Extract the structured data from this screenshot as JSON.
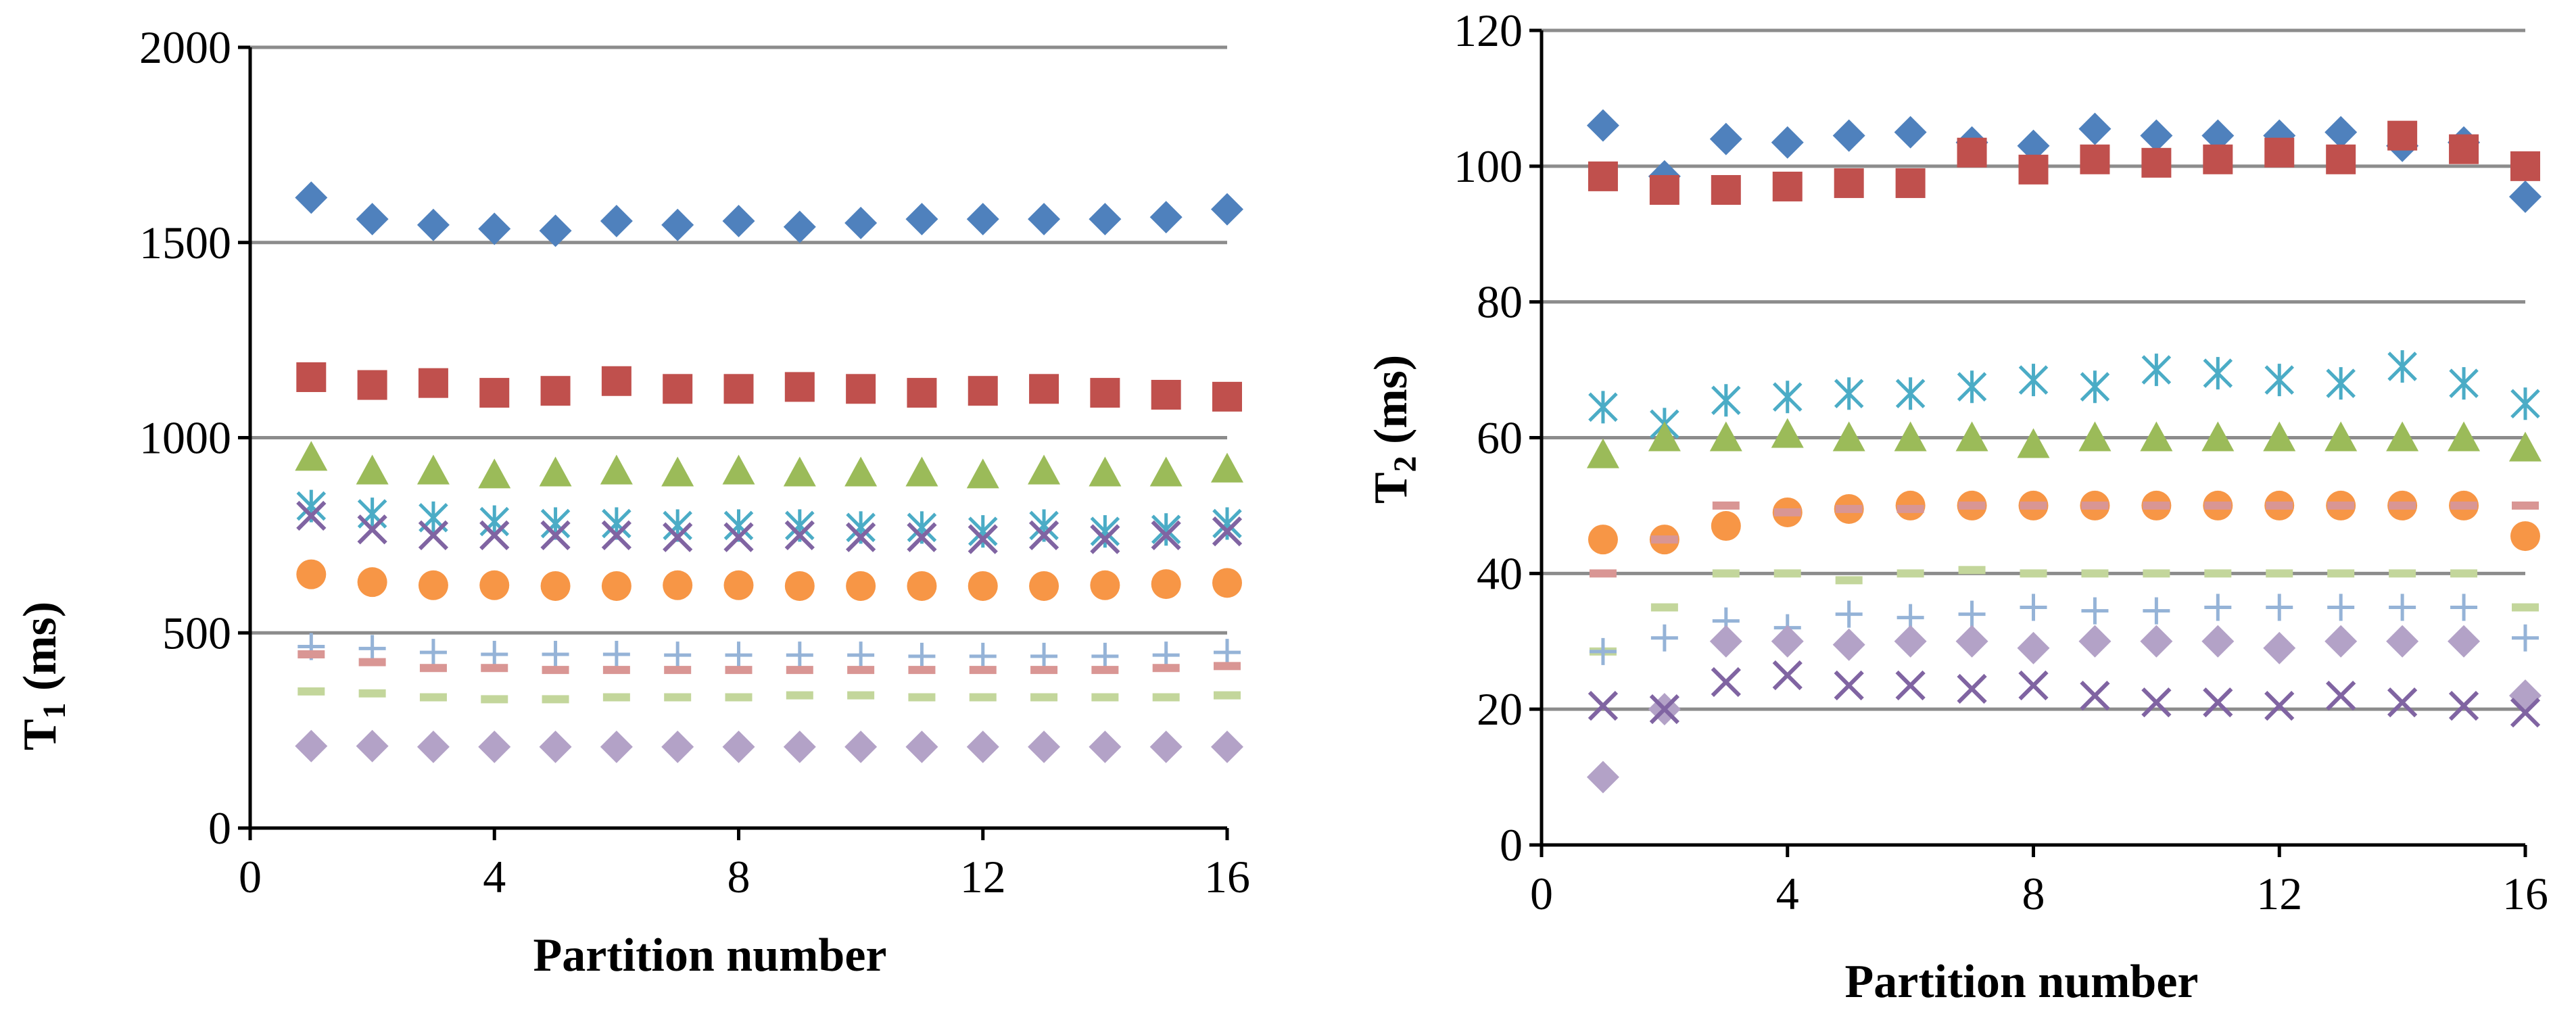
{
  "chart_data": [
    {
      "type": "scatter",
      "id": "t1",
      "ylabel": "T",
      "ylabel_sub": "1",
      "ylabel_unit": " (ms)",
      "xlabel": "Partition number",
      "xlim": [
        0,
        16
      ],
      "ylim": [
        0,
        2000
      ],
      "xticks": [
        0,
        4,
        8,
        12,
        16
      ],
      "yticks": [
        0,
        500,
        1000,
        1500,
        2000
      ],
      "grid": true,
      "x": [
        1,
        2,
        3,
        4,
        5,
        6,
        7,
        8,
        9,
        10,
        11,
        12,
        13,
        14,
        15,
        16
      ],
      "series": [
        {
          "name": "diamond-blue",
          "marker": "diamond",
          "color": "#4f81bd",
          "values": [
            1615,
            1560,
            1545,
            1535,
            1530,
            1555,
            1545,
            1555,
            1540,
            1550,
            1560,
            1560,
            1560,
            1560,
            1565,
            1585
          ]
        },
        {
          "name": "square-red",
          "marker": "square",
          "color": "#c0504d",
          "values": [
            1155,
            1135,
            1140,
            1115,
            1120,
            1145,
            1125,
            1125,
            1130,
            1125,
            1115,
            1120,
            1125,
            1115,
            1110,
            1105
          ]
        },
        {
          "name": "triangle-green",
          "marker": "triangle",
          "color": "#9bbb59",
          "values": [
            950,
            915,
            915,
            905,
            910,
            915,
            910,
            915,
            910,
            910,
            910,
            905,
            915,
            910,
            910,
            920
          ]
        },
        {
          "name": "star-cyan",
          "marker": "asterisk",
          "color": "#4bacc6",
          "values": [
            825,
            805,
            795,
            785,
            780,
            780,
            775,
            775,
            775,
            770,
            770,
            760,
            775,
            760,
            765,
            780
          ]
        },
        {
          "name": "x-purple",
          "marker": "x",
          "color": "#8064a2",
          "values": [
            800,
            765,
            750,
            750,
            750,
            750,
            745,
            745,
            750,
            745,
            745,
            740,
            750,
            740,
            750,
            760
          ]
        },
        {
          "name": "circle-orange",
          "marker": "circle",
          "color": "#f79646",
          "values": [
            650,
            630,
            622,
            622,
            620,
            620,
            622,
            622,
            620,
            620,
            620,
            620,
            620,
            622,
            625,
            628
          ]
        },
        {
          "name": "plus-lightblue",
          "marker": "plus",
          "color": "#95b3d7",
          "values": [
            465,
            460,
            450,
            445,
            445,
            445,
            443,
            443,
            443,
            443,
            440,
            440,
            440,
            440,
            443,
            450
          ]
        },
        {
          "name": "dash-pink",
          "marker": "dash",
          "color": "#d99694",
          "values": [
            445,
            425,
            410,
            410,
            405,
            405,
            405,
            405,
            405,
            405,
            405,
            405,
            405,
            405,
            410,
            415
          ]
        },
        {
          "name": "dash-lightgreen",
          "marker": "dash",
          "color": "#c3d69b",
          "values": [
            350,
            345,
            335,
            330,
            330,
            335,
            335,
            335,
            340,
            340,
            335,
            335,
            335,
            335,
            335,
            340
          ]
        },
        {
          "name": "diamond-lavender",
          "marker": "diamond",
          "color": "#b3a2c7",
          "values": [
            210,
            210,
            208,
            208,
            208,
            208,
            208,
            208,
            208,
            208,
            208,
            208,
            208,
            208,
            208,
            208
          ]
        }
      ]
    },
    {
      "type": "scatter",
      "id": "t2",
      "ylabel": "T",
      "ylabel_sub": "2",
      "ylabel_unit": " (ms)",
      "xlabel": "Partition number",
      "xlim": [
        0,
        16
      ],
      "ylim": [
        0,
        120
      ],
      "xticks": [
        0,
        4,
        8,
        12,
        16
      ],
      "yticks": [
        0,
        20,
        40,
        60,
        80,
        100,
        120
      ],
      "grid": true,
      "x": [
        1,
        2,
        3,
        4,
        5,
        6,
        7,
        8,
        9,
        10,
        11,
        12,
        13,
        14,
        15,
        16
      ],
      "series": [
        {
          "name": "diamond-blue",
          "marker": "diamond",
          "color": "#4f81bd",
          "values": [
            106,
            98.5,
            104,
            103.5,
            104.5,
            105,
            103.5,
            103,
            105.5,
            104.5,
            104.5,
            104.5,
            105,
            103,
            103.5,
            95.5
          ]
        },
        {
          "name": "square-red",
          "marker": "square",
          "color": "#c0504d",
          "values": [
            98.5,
            96.5,
            96.5,
            97,
            97.5,
            97.5,
            102,
            99.5,
            101,
            100.5,
            101,
            102,
            101,
            104.5,
            102.5,
            100
          ]
        },
        {
          "name": "star-cyan",
          "marker": "asterisk",
          "color": "#4bacc6",
          "values": [
            64.5,
            62,
            65.5,
            66,
            66.5,
            66.5,
            67.5,
            68.5,
            67.5,
            70,
            69.5,
            68.5,
            68,
            70.5,
            68,
            65
          ]
        },
        {
          "name": "triangle-green",
          "marker": "triangle",
          "color": "#9bbb59",
          "values": [
            57.5,
            60,
            60,
            60.5,
            60,
            60,
            60,
            59,
            60,
            60,
            60,
            60,
            60,
            60,
            60,
            58.5
          ]
        },
        {
          "name": "circle-orange",
          "marker": "circle",
          "color": "#f79646",
          "values": [
            45,
            45,
            47,
            49,
            49.5,
            50,
            50,
            50,
            50,
            50,
            50,
            50,
            50,
            50,
            50,
            45.5
          ]
        },
        {
          "name": "dash-pink",
          "marker": "dash",
          "color": "#d99694",
          "values": [
            40,
            45,
            50,
            49,
            49.5,
            49.5,
            50,
            50,
            50,
            50,
            50,
            50,
            50,
            50,
            50,
            50
          ]
        },
        {
          "name": "dash-lightgreen",
          "marker": "dash",
          "color": "#c3d69b",
          "values": [
            28.5,
            35,
            40,
            40,
            39,
            40,
            40.5,
            40,
            40,
            40,
            40,
            40,
            40,
            40,
            40,
            35
          ]
        },
        {
          "name": "plus-lightblue",
          "marker": "plus",
          "color": "#95b3d7",
          "values": [
            28.5,
            30.5,
            33,
            32,
            34,
            33.5,
            34,
            35,
            34.5,
            34.5,
            35,
            35,
            35,
            35,
            35,
            30.5
          ]
        },
        {
          "name": "diamond-lavender",
          "marker": "diamond",
          "color": "#b3a2c7",
          "values": [
            10,
            20,
            30,
            30,
            29.5,
            30,
            30,
            29,
            30,
            30,
            30,
            29,
            30,
            30,
            30,
            22
          ]
        },
        {
          "name": "x-purple",
          "marker": "x",
          "color": "#8064a2",
          "values": [
            20.5,
            20,
            24,
            25,
            23.5,
            23.5,
            23,
            23.5,
            22,
            21,
            21,
            20.5,
            22,
            21,
            20.5,
            19.5
          ]
        }
      ]
    }
  ]
}
